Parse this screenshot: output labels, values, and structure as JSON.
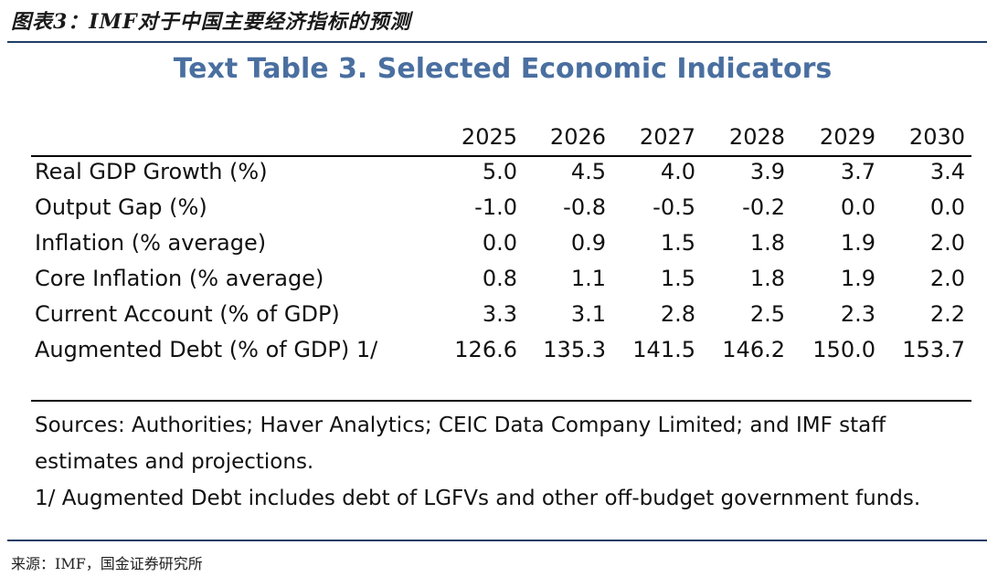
{
  "figure": {
    "caption": "图表3：IMF对于中国主要经济指标的预测",
    "source": "来源：IMF，国金证券研究所"
  },
  "table": {
    "title": "Text Table 3. Selected Economic Indicators",
    "years": [
      "2025",
      "2026",
      "2027",
      "2028",
      "2029",
      "2030"
    ],
    "rows": [
      {
        "label": "Real GDP Growth (%)",
        "values": [
          "5.0",
          "4.5",
          "4.0",
          "3.9",
          "3.7",
          "3.4"
        ]
      },
      {
        "label": "Output Gap (%)",
        "values": [
          "-1.0",
          "-0.8",
          "-0.5",
          "-0.2",
          "0.0",
          "0.0"
        ]
      },
      {
        "label": "Inflation (% average)",
        "values": [
          "0.0",
          "0.9",
          "1.5",
          "1.8",
          "1.9",
          "2.0"
        ]
      },
      {
        "label": "Core Inflation (% average)",
        "values": [
          "0.8",
          "1.1",
          "1.5",
          "1.8",
          "1.9",
          "2.0"
        ]
      },
      {
        "label": "Current Account (% of GDP)",
        "values": [
          "3.3",
          "3.1",
          "2.8",
          "2.5",
          "2.3",
          "2.2"
        ]
      },
      {
        "label": "Augmented Debt (% of GDP) 1/",
        "values": [
          "126.6",
          "135.3",
          "141.5",
          "146.2",
          "150.0",
          "153.7"
        ]
      }
    ],
    "notes": [
      "Sources: Authorities; Haver Analytics; CEIC Data Company Limited; and IMF staff",
      "estimates and projections.",
      "1/ Augmented Debt includes debt of LGFVs and other off-budget government funds."
    ]
  }
}
